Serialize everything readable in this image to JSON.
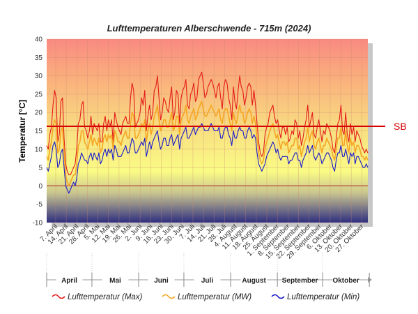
{
  "chart_data": {
    "type": "line",
    "title": "Lufttemperaturen Alberschwende - 715m (2024)",
    "ylabel": "Temperatur [°C]",
    "ylim": [
      -10,
      40
    ],
    "y_ticks": [
      "40",
      "35",
      "30",
      "25",
      "20",
      "15",
      "10",
      "5",
      "0",
      "-5",
      "-10"
    ],
    "x_range": [
      "2024-04-01",
      "2024-10-31"
    ],
    "x_tick_labels": [
      "7. April",
      "14. April",
      "21. April",
      "28. April",
      "5. Mai",
      "12. Mai",
      "19. Mai",
      "26. Mai",
      "2. Juni",
      "9. Juni",
      "16. Juni",
      "23. Juni",
      "30. Juni",
      "7. Juli",
      "14. Juli",
      "21. Juli",
      "28. Juli",
      "4. August",
      "11. August",
      "18. August",
      "25. August",
      "1. September",
      "8. September",
      "15. September",
      "22. September",
      "29. September",
      "6. Oktober",
      "13. Oktober",
      "20. Oktober",
      "27. Oktober"
    ],
    "months": [
      "April",
      "Mai",
      "Juni",
      "Juli",
      "August",
      "September",
      "Oktober"
    ],
    "reference_line": {
      "label": "SB",
      "value": 16.5,
      "color": "#d40000"
    },
    "series": [
      {
        "name": "Lufttemperatur (Max)",
        "color": "#e41a1a",
        "values": [
          11,
          10,
          14,
          16,
          22,
          26,
          24,
          12,
          14,
          23,
          24,
          13,
          6,
          4,
          3,
          3,
          4,
          5,
          6,
          10,
          17,
          18,
          22,
          23,
          16,
          15,
          13,
          15,
          19,
          14,
          17,
          16,
          15,
          17,
          12,
          12,
          17,
          19,
          15,
          18,
          16,
          18,
          12,
          20,
          18,
          16,
          15,
          14,
          17,
          18,
          19,
          17,
          17,
          24,
          28,
          26,
          16,
          17,
          18,
          20,
          24,
          22,
          26,
          15,
          19,
          22,
          18,
          20,
          26,
          27,
          30,
          24,
          18,
          20,
          24,
          23,
          21,
          20,
          24,
          27,
          18,
          20,
          26,
          25,
          17,
          24,
          26,
          27,
          29,
          22,
          21,
          25,
          26,
          28,
          23,
          24,
          29,
          30,
          31,
          28,
          24,
          25,
          27,
          28,
          29,
          28,
          26,
          24,
          27,
          28,
          24,
          21,
          27,
          29,
          28,
          24,
          22,
          18,
          27,
          23,
          21,
          26,
          30,
          27,
          26,
          22,
          24,
          27,
          28,
          27,
          22,
          26,
          22,
          17,
          12,
          9,
          8,
          9,
          14,
          16,
          17,
          20,
          21,
          22,
          19,
          17,
          18,
          15,
          13,
          16,
          16,
          14,
          16,
          12,
          13,
          15,
          14,
          18,
          17,
          13,
          15,
          11,
          13,
          16,
          18,
          22,
          16,
          18,
          20,
          14,
          13,
          16,
          18,
          15,
          12,
          15,
          14,
          17,
          16,
          15,
          13,
          10,
          9,
          13,
          17,
          18,
          22,
          15,
          14,
          20,
          14,
          12,
          17,
          14,
          16,
          12,
          15,
          14,
          13,
          11,
          10,
          9,
          10,
          9
        ]
      },
      {
        "name": "Lufttemperatur (MW)",
        "color": "#f5a623",
        "values": [
          8,
          7,
          10,
          12,
          16,
          18,
          17,
          9,
          10,
          15,
          16,
          9,
          3,
          1,
          0,
          1,
          2,
          3,
          3,
          6,
          11,
          12,
          15,
          15,
          12,
          11,
          10,
          12,
          14,
          11,
          13,
          12,
          11,
          13,
          9,
          10,
          13,
          14,
          12,
          14,
          13,
          14,
          10,
          15,
          14,
          12,
          12,
          11,
          13,
          14,
          15,
          13,
          13,
          17,
          20,
          19,
          13,
          13,
          14,
          15,
          17,
          16,
          18,
          12,
          15,
          17,
          14,
          16,
          19,
          20,
          22,
          18,
          15,
          16,
          18,
          18,
          16,
          16,
          18,
          20,
          15,
          16,
          19,
          19,
          14,
          18,
          19,
          20,
          22,
          18,
          17,
          19,
          20,
          21,
          18,
          19,
          21,
          22,
          23,
          21,
          19,
          19,
          20,
          21,
          22,
          21,
          20,
          19,
          20,
          21,
          18,
          17,
          20,
          21,
          21,
          19,
          17,
          15,
          20,
          18,
          17,
          20,
          22,
          20,
          20,
          17,
          18,
          20,
          21,
          20,
          17,
          19,
          17,
          13,
          9,
          7,
          6,
          7,
          10,
          12,
          13,
          15,
          16,
          17,
          15,
          13,
          14,
          12,
          10,
          12,
          12,
          11,
          12,
          9,
          10,
          11,
          11,
          13,
          13,
          10,
          11,
          8,
          10,
          12,
          13,
          16,
          12,
          14,
          15,
          11,
          10,
          12,
          13,
          11,
          9,
          11,
          11,
          13,
          12,
          11,
          10,
          8,
          7,
          10,
          13,
          13,
          16,
          11,
          11,
          15,
          11,
          9,
          13,
          11,
          12,
          9,
          11,
          11,
          10,
          8,
          8,
          7,
          8,
          7
        ]
      },
      {
        "name": "Lufttemperatur (Min)",
        "color": "#1a1acc",
        "values": [
          5,
          4,
          6,
          8,
          11,
          12,
          10,
          5,
          6,
          9,
          10,
          5,
          0,
          -1,
          -2,
          -1,
          0,
          1,
          0,
          2,
          6,
          7,
          9,
          8,
          7,
          7,
          6,
          8,
          9,
          7,
          9,
          8,
          7,
          9,
          6,
          7,
          9,
          10,
          8,
          10,
          9,
          10,
          7,
          11,
          10,
          8,
          8,
          8,
          9,
          10,
          11,
          9,
          9,
          11,
          13,
          12,
          9,
          9,
          10,
          11,
          12,
          11,
          13,
          8,
          10,
          12,
          10,
          12,
          13,
          14,
          15,
          12,
          10,
          11,
          13,
          13,
          11,
          11,
          13,
          14,
          11,
          12,
          13,
          14,
          10,
          13,
          14,
          15,
          16,
          13,
          13,
          14,
          15,
          16,
          14,
          15,
          16,
          16,
          17,
          16,
          15,
          15,
          15,
          16,
          17,
          16,
          15,
          15,
          15,
          16,
          13,
          13,
          15,
          16,
          16,
          14,
          13,
          11,
          15,
          13,
          13,
          15,
          16,
          15,
          15,
          13,
          13,
          15,
          16,
          15,
          13,
          14,
          13,
          9,
          6,
          5,
          4,
          5,
          6,
          8,
          9,
          10,
          11,
          12,
          11,
          9,
          10,
          8,
          7,
          8,
          8,
          8,
          8,
          6,
          7,
          7,
          8,
          9,
          9,
          7,
          7,
          5,
          7,
          8,
          9,
          11,
          9,
          10,
          11,
          8,
          7,
          8,
          9,
          8,
          6,
          7,
          8,
          9,
          9,
          8,
          7,
          5,
          4,
          7,
          9,
          9,
          11,
          8,
          8,
          10,
          8,
          6,
          9,
          8,
          9,
          6,
          8,
          8,
          7,
          6,
          5,
          5,
          6,
          5
        ]
      }
    ]
  }
}
